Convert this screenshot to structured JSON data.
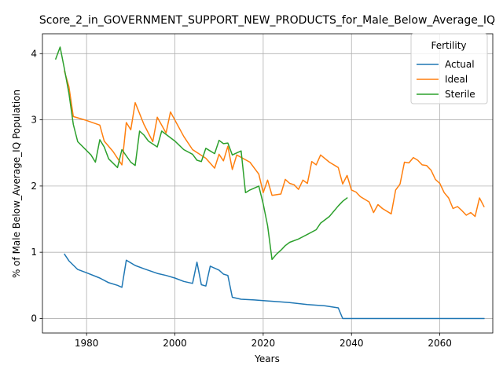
{
  "chart_data": {
    "type": "line",
    "title": "Score_2_in_GOVERNMENT_SUPPORT_NEW_PRODUCTS_for_Male_Below_Average_IQ",
    "xlabel": "Years",
    "ylabel": "% of Male Below_Average_IQ Population",
    "xlim": [
      1970,
      2072
    ],
    "ylim": [
      -0.22,
      4.3
    ],
    "xticks": [
      1980,
      2000,
      2020,
      2040,
      2060
    ],
    "yticks": [
      0,
      1,
      2,
      3,
      4
    ],
    "grid": true,
    "legend": {
      "title": "Fertility",
      "position": "top-right"
    },
    "series": [
      {
        "name": "Actual",
        "color": "#1f77b4",
        "points": [
          [
            1975,
            0.97
          ],
          [
            1976,
            0.87
          ],
          [
            1978,
            0.74
          ],
          [
            1980,
            0.69
          ],
          [
            1983,
            0.61
          ],
          [
            1985,
            0.54
          ],
          [
            1987,
            0.5
          ],
          [
            1988,
            0.47
          ],
          [
            1989,
            0.88
          ],
          [
            1991,
            0.8
          ],
          [
            1993,
            0.75
          ],
          [
            1996,
            0.68
          ],
          [
            1998,
            0.65
          ],
          [
            2000,
            0.61
          ],
          [
            2002,
            0.56
          ],
          [
            2004,
            0.53
          ],
          [
            2005,
            0.85
          ],
          [
            2006,
            0.51
          ],
          [
            2007,
            0.49
          ],
          [
            2008,
            0.79
          ],
          [
            2010,
            0.73
          ],
          [
            2011,
            0.67
          ],
          [
            2012,
            0.65
          ],
          [
            2013,
            0.32
          ],
          [
            2015,
            0.29
          ],
          [
            2018,
            0.28
          ],
          [
            2020,
            0.27
          ],
          [
            2024,
            0.25
          ],
          [
            2026,
            0.24
          ],
          [
            2030,
            0.21
          ],
          [
            2034,
            0.19
          ],
          [
            2036,
            0.17
          ],
          [
            2037,
            0.16
          ],
          [
            2038,
            0.0
          ],
          [
            2070,
            0.0
          ]
        ]
      },
      {
        "name": "Ideal",
        "color": "#ff7f0e",
        "points": [
          [
            1975,
            3.73
          ],
          [
            1976,
            3.5
          ],
          [
            1977,
            3.05
          ],
          [
            1980,
            2.99
          ],
          [
            1983,
            2.92
          ],
          [
            1984,
            2.68
          ],
          [
            1986,
            2.52
          ],
          [
            1988,
            2.32
          ],
          [
            1989,
            2.96
          ],
          [
            1990,
            2.85
          ],
          [
            1991,
            3.26
          ],
          [
            1993,
            2.93
          ],
          [
            1995,
            2.67
          ],
          [
            1996,
            3.04
          ],
          [
            1998,
            2.8
          ],
          [
            1999,
            3.12
          ],
          [
            2002,
            2.75
          ],
          [
            2004,
            2.55
          ],
          [
            2007,
            2.42
          ],
          [
            2009,
            2.27
          ],
          [
            2010,
            2.48
          ],
          [
            2011,
            2.38
          ],
          [
            2012,
            2.6
          ],
          [
            2013,
            2.25
          ],
          [
            2014,
            2.47
          ],
          [
            2017,
            2.36
          ],
          [
            2019,
            2.18
          ],
          [
            2020,
            1.9
          ],
          [
            2021,
            2.09
          ],
          [
            2022,
            1.86
          ],
          [
            2024,
            1.88
          ],
          [
            2025,
            2.1
          ],
          [
            2026,
            2.04
          ],
          [
            2027,
            2.02
          ],
          [
            2028,
            1.95
          ],
          [
            2029,
            2.09
          ],
          [
            2030,
            2.04
          ],
          [
            2031,
            2.37
          ],
          [
            2032,
            2.32
          ],
          [
            2033,
            2.47
          ],
          [
            2035,
            2.36
          ],
          [
            2037,
            2.28
          ],
          [
            2038,
            2.03
          ],
          [
            2039,
            2.16
          ],
          [
            2040,
            1.94
          ],
          [
            2041,
            1.91
          ],
          [
            2042,
            1.84
          ],
          [
            2044,
            1.76
          ],
          [
            2045,
            1.6
          ],
          [
            2046,
            1.72
          ],
          [
            2047,
            1.66
          ],
          [
            2049,
            1.58
          ],
          [
            2050,
            1.94
          ],
          [
            2051,
            2.03
          ],
          [
            2052,
            2.36
          ],
          [
            2053,
            2.35
          ],
          [
            2054,
            2.43
          ],
          [
            2055,
            2.39
          ],
          [
            2056,
            2.32
          ],
          [
            2057,
            2.31
          ],
          [
            2058,
            2.24
          ],
          [
            2059,
            2.1
          ],
          [
            2060,
            2.04
          ],
          [
            2061,
            1.9
          ],
          [
            2062,
            1.82
          ],
          [
            2063,
            1.66
          ],
          [
            2064,
            1.69
          ],
          [
            2065,
            1.63
          ],
          [
            2066,
            1.56
          ],
          [
            2067,
            1.6
          ],
          [
            2068,
            1.54
          ],
          [
            2069,
            1.82
          ],
          [
            2070,
            1.69
          ]
        ]
      },
      {
        "name": "Sterile",
        "color": "#2ca02c",
        "points": [
          [
            1973,
            3.92
          ],
          [
            1974,
            4.1
          ],
          [
            1975,
            3.76
          ],
          [
            1976,
            3.4
          ],
          [
            1977,
            2.93
          ],
          [
            1978,
            2.67
          ],
          [
            1981,
            2.47
          ],
          [
            1982,
            2.36
          ],
          [
            1983,
            2.7
          ],
          [
            1984,
            2.59
          ],
          [
            1985,
            2.41
          ],
          [
            1987,
            2.28
          ],
          [
            1988,
            2.55
          ],
          [
            1990,
            2.36
          ],
          [
            1991,
            2.31
          ],
          [
            1992,
            2.83
          ],
          [
            1993,
            2.77
          ],
          [
            1994,
            2.68
          ],
          [
            1996,
            2.59
          ],
          [
            1997,
            2.83
          ],
          [
            1998,
            2.78
          ],
          [
            2000,
            2.68
          ],
          [
            2002,
            2.55
          ],
          [
            2004,
            2.48
          ],
          [
            2005,
            2.39
          ],
          [
            2006,
            2.37
          ],
          [
            2007,
            2.57
          ],
          [
            2009,
            2.49
          ],
          [
            2010,
            2.69
          ],
          [
            2011,
            2.64
          ],
          [
            2012,
            2.65
          ],
          [
            2013,
            2.47
          ],
          [
            2014,
            2.5
          ],
          [
            2015,
            2.53
          ],
          [
            2016,
            1.9
          ],
          [
            2017,
            1.94
          ],
          [
            2019,
            2.0
          ],
          [
            2020,
            1.73
          ],
          [
            2021,
            1.4
          ],
          [
            2022,
            0.89
          ],
          [
            2023,
            0.97
          ],
          [
            2024,
            1.03
          ],
          [
            2025,
            1.1
          ],
          [
            2026,
            1.15
          ],
          [
            2028,
            1.2
          ],
          [
            2030,
            1.27
          ],
          [
            2032,
            1.34
          ],
          [
            2033,
            1.44
          ],
          [
            2035,
            1.54
          ],
          [
            2037,
            1.7
          ],
          [
            2038,
            1.77
          ],
          [
            2039,
            1.82
          ]
        ]
      }
    ]
  }
}
